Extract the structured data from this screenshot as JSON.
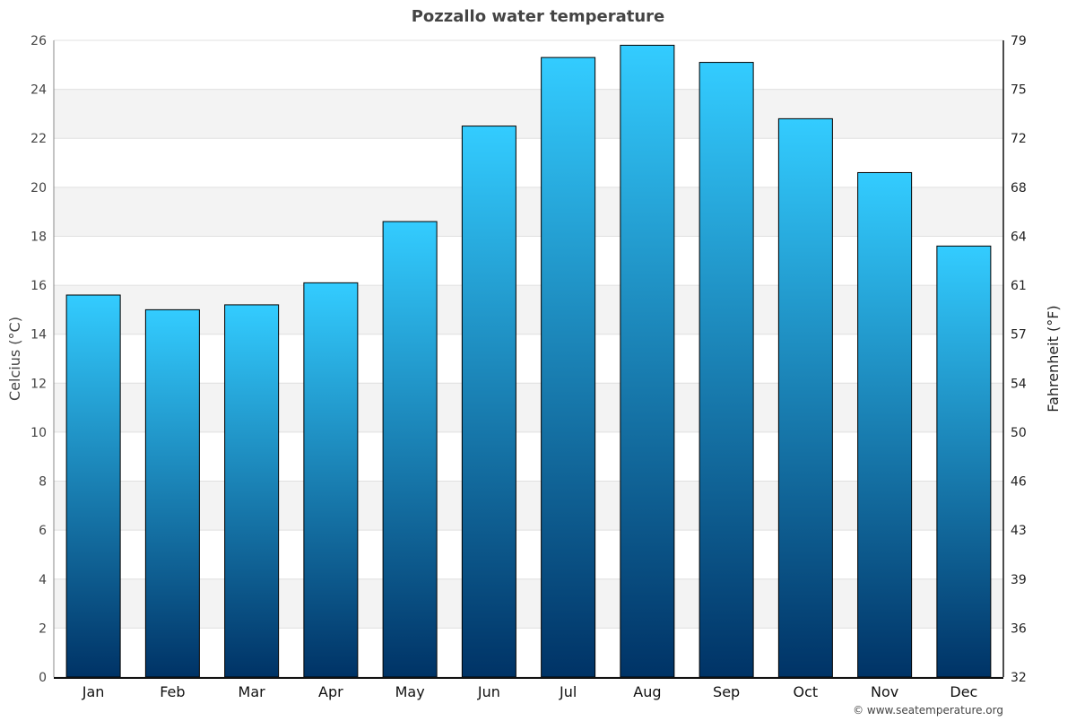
{
  "chart_data": {
    "type": "bar",
    "title": "Pozzallo water temperature",
    "categories": [
      "Jan",
      "Feb",
      "Mar",
      "Apr",
      "May",
      "Jun",
      "Jul",
      "Aug",
      "Sep",
      "Oct",
      "Nov",
      "Dec"
    ],
    "values": [
      15.6,
      15.0,
      15.2,
      16.1,
      18.6,
      22.5,
      25.3,
      25.8,
      25.1,
      22.8,
      20.6,
      17.6
    ],
    "ylabel": "Celcius (°C)",
    "y2label": "Fahrenheit (°F)",
    "ylim": [
      0,
      26
    ],
    "yticks": [
      0,
      2,
      4,
      6,
      8,
      10,
      12,
      14,
      16,
      18,
      20,
      22,
      24,
      26
    ],
    "y2ticks": [
      "32",
      "36",
      "39",
      "43",
      "46",
      "50",
      "54",
      "57",
      "61",
      "64",
      "68",
      "72",
      "75",
      "79"
    ],
    "grid": true,
    "colors": {
      "bar_top": "#33ccff",
      "bar_bottom": "#003366",
      "band": "#f3f3f3"
    },
    "credit": "© www.seatemperature.org"
  }
}
